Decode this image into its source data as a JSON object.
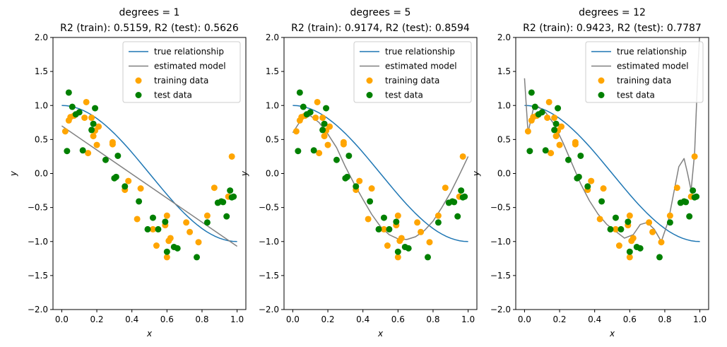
{
  "colors": {
    "true_line": "#1f77b4",
    "model_line": "#808080",
    "training_points": "#ffa500",
    "test_points": "#008000",
    "axes": "#000000",
    "legend_border": "#cccccc"
  },
  "chart_data": [
    {
      "type": "line",
      "title_line1": "degrees = 1",
      "title_line2": "R2 (train): 0.5159, R2 (test): 0.5626",
      "xlabel": "x",
      "ylabel": "y",
      "xlim": [
        -0.05,
        1.05
      ],
      "ylim": [
        -2,
        2
      ],
      "xticks": [
        0.0,
        0.2,
        0.4,
        0.6,
        0.8,
        1.0
      ],
      "xtick_labels": [
        "0.0",
        "0.2",
        "0.4",
        "0.6",
        "0.8",
        "1.0"
      ],
      "yticks": [
        -2.0,
        -1.5,
        -1.0,
        -0.5,
        0.0,
        0.5,
        1.0,
        1.5,
        2.0
      ],
      "ytick_labels": [
        "−2.0",
        "−1.5",
        "−1.0",
        "−0.5",
        "0.0",
        "0.5",
        "1.0",
        "1.5",
        "2.0"
      ],
      "grid": false,
      "legend_position": "top-right",
      "legend": [
        "true relationship",
        "estimated model",
        "training data",
        "test data"
      ],
      "estimated_model": {
        "x": [
          0.0,
          1.0
        ],
        "y": [
          0.7,
          -1.07
        ]
      }
    },
    {
      "type": "line",
      "title_line1": "degrees = 5",
      "title_line2": "R2 (train): 0.9174, R2 (test): 0.8594",
      "xlabel": "x",
      "ylabel": "y",
      "xlim": [
        -0.05,
        1.05
      ],
      "ylim": [
        -2,
        2
      ],
      "xticks": [
        0.0,
        0.2,
        0.4,
        0.6,
        0.8,
        1.0
      ],
      "xtick_labels": [
        "0.0",
        "0.2",
        "0.4",
        "0.6",
        "0.8",
        "1.0"
      ],
      "yticks": [
        -2.0,
        -1.5,
        -1.0,
        -0.5,
        0.0,
        0.5,
        1.0,
        1.5,
        2.0
      ],
      "ytick_labels": [
        "−2.0",
        "−1.5",
        "−1.0",
        "−0.5",
        "0.0",
        "0.5",
        "1.0",
        "1.5",
        "2.0"
      ],
      "grid": false,
      "legend_position": "top-right",
      "legend": [
        "true relationship",
        "estimated model",
        "training data",
        "test data"
      ],
      "estimated_model": {
        "x": [
          0.0,
          0.05,
          0.1,
          0.15,
          0.2,
          0.25,
          0.3,
          0.35,
          0.4,
          0.45,
          0.5,
          0.55,
          0.6,
          0.65,
          0.7,
          0.75,
          0.8,
          0.85,
          0.9,
          0.95,
          1.0
        ],
        "y": [
          0.6,
          0.8,
          0.85,
          0.75,
          0.58,
          0.38,
          0.1,
          -0.15,
          -0.38,
          -0.6,
          -0.78,
          -0.9,
          -0.96,
          -0.97,
          -0.93,
          -0.84,
          -0.7,
          -0.5,
          -0.28,
          -0.02,
          0.25
        ]
      }
    },
    {
      "type": "line",
      "title_line1": "degrees = 12",
      "title_line2": "R2 (train): 0.9423, R2 (test): 0.7787",
      "xlabel": "x",
      "ylabel": "y",
      "xlim": [
        -0.05,
        1.05
      ],
      "ylim": [
        -2,
        2
      ],
      "xticks": [
        0.0,
        0.2,
        0.4,
        0.6,
        0.8,
        1.0
      ],
      "xtick_labels": [
        "0.0",
        "0.2",
        "0.4",
        "0.6",
        "0.8",
        "1.0"
      ],
      "yticks": [
        -2.0,
        -1.5,
        -1.0,
        -0.5,
        0.0,
        0.5,
        1.0,
        1.5,
        2.0
      ],
      "ytick_labels": [
        "−2.0",
        "−1.5",
        "−1.0",
        "−0.5",
        "0.0",
        "0.5",
        "1.0",
        "1.5",
        "2.0"
      ],
      "grid": false,
      "legend_position": "top-right",
      "legend": [
        "true relationship",
        "estimated model",
        "training data",
        "test data"
      ],
      "estimated_model": {
        "x": [
          0.0,
          0.02,
          0.05,
          0.08,
          0.12,
          0.17,
          0.22,
          0.27,
          0.32,
          0.37,
          0.42,
          0.47,
          0.52,
          0.57,
          0.62,
          0.66,
          0.7,
          0.74,
          0.78,
          0.82,
          0.85,
          0.88,
          0.91,
          0.93,
          0.95,
          0.97,
          0.99,
          1.0
        ],
        "y": [
          1.4,
          0.6,
          0.95,
          0.98,
          0.9,
          0.72,
          0.45,
          0.15,
          -0.15,
          -0.4,
          -0.6,
          -0.75,
          -0.85,
          -0.95,
          -0.9,
          -0.75,
          -0.72,
          -0.82,
          -1.0,
          -0.7,
          -0.3,
          0.1,
          0.22,
          0.0,
          -0.25,
          0.3,
          1.6,
          2.1
        ]
      }
    }
  ],
  "shared": {
    "true_relationship": {
      "x": [
        0.0,
        0.025,
        0.05,
        0.075,
        0.1,
        0.125,
        0.15,
        0.175,
        0.2,
        0.225,
        0.25,
        0.275,
        0.3,
        0.325,
        0.35,
        0.375,
        0.4,
        0.425,
        0.45,
        0.475,
        0.5,
        0.525,
        0.55,
        0.575,
        0.6,
        0.625,
        0.65,
        0.675,
        0.7,
        0.725,
        0.75,
        0.775,
        0.8,
        0.825,
        0.85,
        0.875,
        0.9,
        0.925,
        0.95,
        0.975,
        1.0
      ],
      "y": [
        1.0,
        0.997,
        0.988,
        0.972,
        0.951,
        0.924,
        0.891,
        0.853,
        0.809,
        0.76,
        0.707,
        0.649,
        0.588,
        0.522,
        0.454,
        0.383,
        0.309,
        0.233,
        0.156,
        0.078,
        0.0,
        -0.078,
        -0.156,
        -0.233,
        -0.309,
        -0.383,
        -0.454,
        -0.522,
        -0.588,
        -0.649,
        -0.707,
        -0.76,
        -0.809,
        -0.853,
        -0.891,
        -0.924,
        -0.951,
        -0.972,
        -0.988,
        -0.997,
        -1.0
      ]
    },
    "training_data": {
      "x": [
        0.02,
        0.04,
        0.05,
        0.07,
        0.13,
        0.14,
        0.15,
        0.17,
        0.18,
        0.19,
        0.2,
        0.21,
        0.29,
        0.29,
        0.36,
        0.38,
        0.43,
        0.45,
        0.52,
        0.54,
        0.59,
        0.6,
        0.6,
        0.61,
        0.62,
        0.71,
        0.73,
        0.78,
        0.83,
        0.87,
        0.95,
        0.97
      ],
      "y": [
        0.62,
        0.78,
        0.83,
        0.85,
        0.82,
        1.05,
        0.3,
        0.82,
        0.55,
        0.63,
        0.42,
        0.69,
        0.43,
        0.46,
        -0.24,
        -0.11,
        -0.67,
        -0.22,
        -0.82,
        -1.06,
        -0.76,
        -1.23,
        -0.62,
        -0.99,
        -0.95,
        -0.72,
        -0.86,
        -1.01,
        -0.62,
        -0.21,
        -0.34,
        0.25
      ]
    },
    "test_data": {
      "x": [
        0.03,
        0.04,
        0.06,
        0.08,
        0.1,
        0.12,
        0.17,
        0.18,
        0.19,
        0.25,
        0.3,
        0.31,
        0.32,
        0.36,
        0.44,
        0.49,
        0.52,
        0.55,
        0.59,
        0.6,
        0.64,
        0.66,
        0.77,
        0.83,
        0.89,
        0.91,
        0.92,
        0.94,
        0.96,
        0.97,
        0.98
      ],
      "y": [
        0.33,
        1.19,
        0.98,
        0.87,
        0.9,
        0.34,
        0.64,
        0.73,
        0.96,
        0.2,
        -0.07,
        -0.05,
        0.26,
        -0.19,
        -0.41,
        -0.82,
        -0.65,
        -0.82,
        -0.71,
        -1.15,
        -1.08,
        -1.1,
        -1.23,
        -0.72,
        -0.43,
        -0.41,
        -0.42,
        -0.63,
        -0.25,
        -0.35,
        -0.34
      ]
    }
  }
}
